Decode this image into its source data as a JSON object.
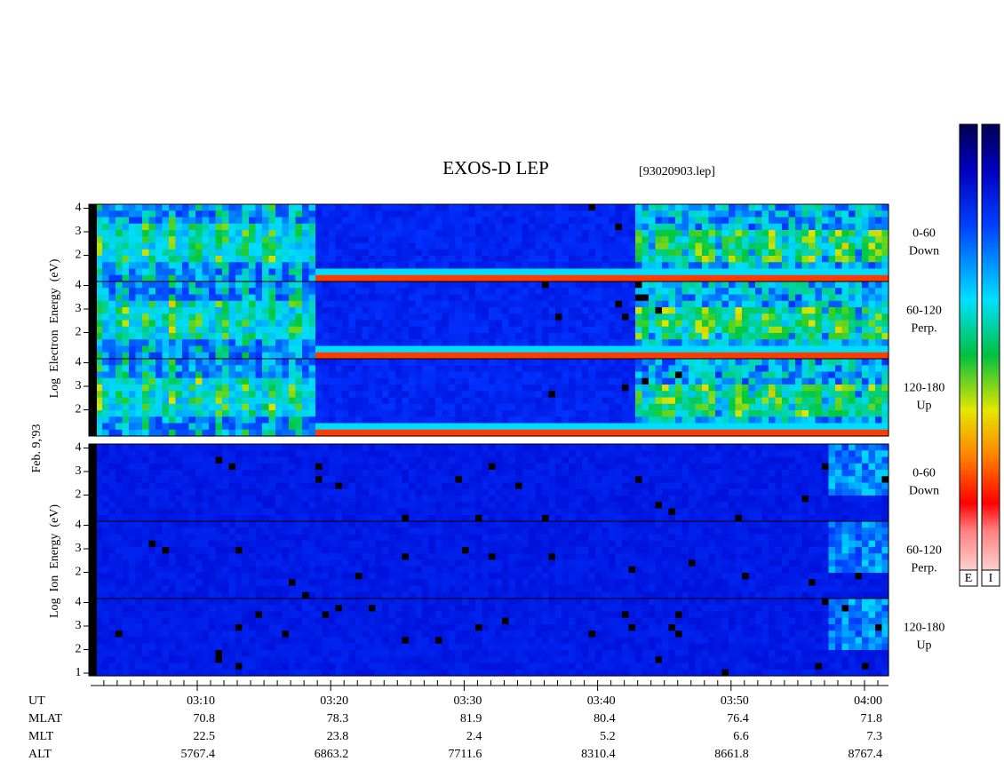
{
  "header": {
    "title": "EXOS-D LEP",
    "file": "[93020903.lep]"
  },
  "date": "Feb. 9,'93",
  "electron": {
    "axis_label": "Log  Electron  Energy  (eV)",
    "panels": [
      {
        "ticks": [
          4,
          3,
          2
        ],
        "label": [
          "0-60",
          "Down"
        ]
      },
      {
        "ticks": [
          4,
          3,
          2
        ],
        "label": [
          "60-120",
          "Perp."
        ]
      },
      {
        "ticks": [
          4,
          3,
          2
        ],
        "label": [
          "120-180",
          "Up"
        ]
      }
    ]
  },
  "ion": {
    "axis_label": "Log  Ion  Energy  (eV)",
    "panels": [
      {
        "ticks": [
          4,
          3,
          2
        ],
        "label": [
          "0-60",
          "Down"
        ]
      },
      {
        "ticks": [
          4,
          3,
          2
        ],
        "label": [
          "60-120",
          "Perp."
        ]
      },
      {
        "ticks": [
          4,
          3,
          2,
          1
        ],
        "label": [
          "120-180",
          "Up"
        ]
      }
    ]
  },
  "time_axis": {
    "rows": [
      {
        "label": "UT",
        "values": [
          "03:10",
          "03:20",
          "03:30",
          "03:40",
          "03:50",
          "04:00"
        ]
      },
      {
        "label": "MLAT",
        "values": [
          70.8,
          78.3,
          81.9,
          80.4,
          76.4,
          71.8
        ]
      },
      {
        "label": "MLT",
        "values": [
          22.5,
          23.8,
          2.4,
          5.2,
          6.6,
          7.3
        ]
      },
      {
        "label": "ALT",
        "values": [
          5767.4,
          6863.2,
          7711.6,
          8310.4,
          8661.8,
          8767.4
        ]
      }
    ]
  },
  "colorbars": [
    "E",
    "I"
  ]
}
